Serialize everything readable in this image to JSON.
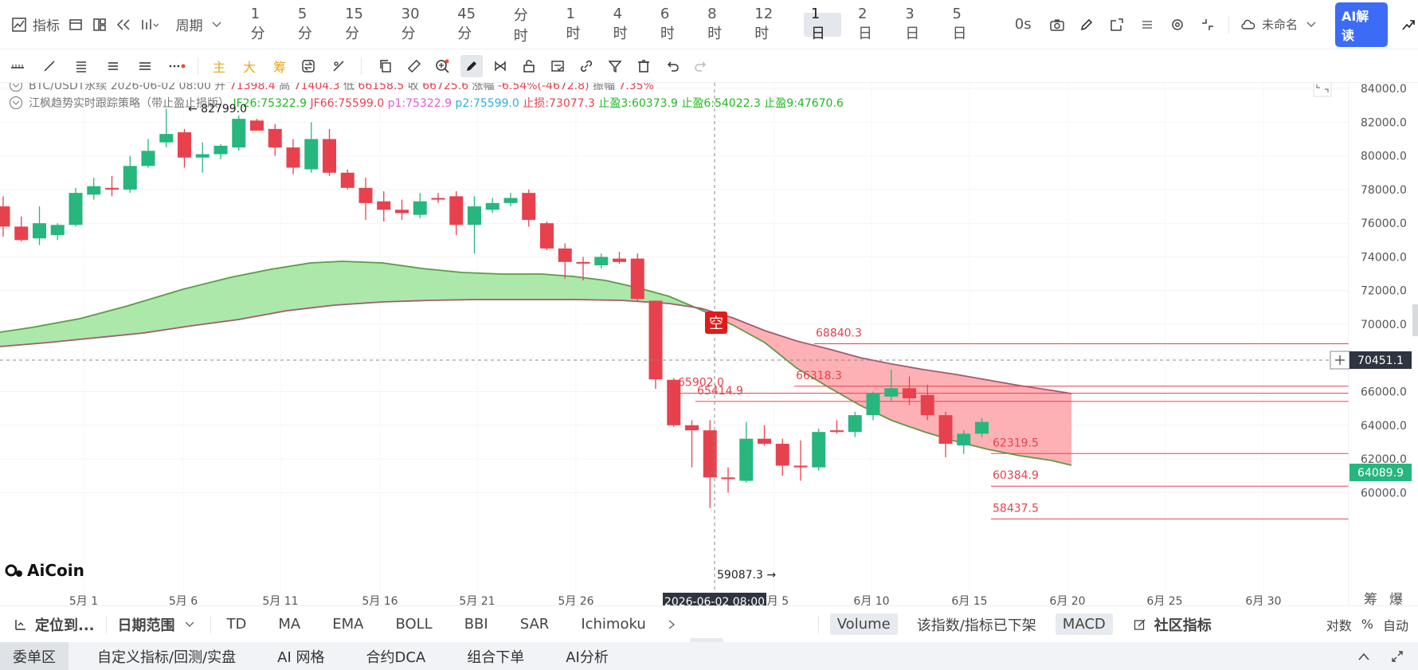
{
  "toolbar": {
    "indicator_label": "指标",
    "period_label": "周期",
    "periods": [
      "1分",
      "5分",
      "15分",
      "30分",
      "45分",
      "分时",
      "1时",
      "4时",
      "6时",
      "8时",
      "12时",
      "1日",
      "2日",
      "3日",
      "5日"
    ],
    "active_period": "1日",
    "timer": "0s",
    "layout_name": "未命名",
    "ai_button": "AI解读"
  },
  "toolbar2": {
    "main_label": "主",
    "big_label": "大",
    "chip_label": "筹"
  },
  "legend": {
    "symbol": "BTC/USDT永续",
    "datetime": "2026-06-02 08:00",
    "open_label": "开",
    "open": "71398.4",
    "high_label": "高",
    "high": "71404.3",
    "low_label": "低",
    "low": "66158.5",
    "close_label": "收",
    "close": "66725.6",
    "change_label": "涨幅",
    "change": "-6.54%(-4672.8)",
    "amp_label": "振幅",
    "amp": "7.35%",
    "strategy": "江枫趋势实时跟踪策略（带止盈止损版）",
    "jf26": "JF26:75322.9",
    "jf66": "JF66:75599.0",
    "p1": "p1:75322.9",
    "p2": "p2:75599.0",
    "stop_loss": "止损:73077.3",
    "tp3": "止盈3:60373.9",
    "tp6": "止盈6:54022.3",
    "tp9": "止盈9:47670.6"
  },
  "chart_data": {
    "type": "candlestick",
    "symbol": "BTC/USDT永续",
    "y_ticks": [
      "84000.0",
      "82000.0",
      "80000.0",
      "78000.0",
      "76000.0",
      "74000.0",
      "72000.0",
      "70000.0",
      "68000.0",
      "66000.0",
      "64000.0",
      "62000.0",
      "60000.0"
    ],
    "x_ticks": [
      "5月 1",
      "5月 6",
      "5月 11",
      "5月 16",
      "5月 21",
      "5月 26",
      "6月 5",
      "6月 10",
      "6月 15",
      "6月 20",
      "6月 25",
      "6月 30"
    ],
    "crosshair_price": "70451.1",
    "crosshair_date": "2026-06-02 08:00",
    "last_price": "64089.9",
    "max_label": "82799.0",
    "min_label": "59087.3",
    "signal": "空",
    "level_labels": [
      "68840.3",
      "66318.3",
      "65902.0",
      "65414.9",
      "62319.5",
      "60384.9",
      "58437.5"
    ],
    "candles": [
      {
        "o": 77000,
        "h": 77600,
        "l": 75200,
        "c": 75800
      },
      {
        "o": 75800,
        "h": 76400,
        "l": 74900,
        "c": 75000
      },
      {
        "o": 75100,
        "h": 77000,
        "l": 74700,
        "c": 76000
      },
      {
        "o": 75300,
        "h": 76000,
        "l": 75000,
        "c": 75900
      },
      {
        "o": 75900,
        "h": 78100,
        "l": 75800,
        "c": 77800
      },
      {
        "o": 77700,
        "h": 78700,
        "l": 77400,
        "c": 78200
      },
      {
        "o": 78100,
        "h": 78800,
        "l": 77600,
        "c": 78000
      },
      {
        "o": 78000,
        "h": 80000,
        "l": 77800,
        "c": 79400
      },
      {
        "o": 79400,
        "h": 81000,
        "l": 79300,
        "c": 80300
      },
      {
        "o": 80800,
        "h": 82800,
        "l": 80500,
        "c": 81300
      },
      {
        "o": 81400,
        "h": 81600,
        "l": 79300,
        "c": 79900
      },
      {
        "o": 79900,
        "h": 80800,
        "l": 79000,
        "c": 80100
      },
      {
        "o": 80100,
        "h": 80700,
        "l": 79800,
        "c": 80600
      },
      {
        "o": 80500,
        "h": 82400,
        "l": 80300,
        "c": 82200
      },
      {
        "o": 82100,
        "h": 82200,
        "l": 81600,
        "c": 81500
      },
      {
        "o": 81600,
        "h": 81900,
        "l": 80000,
        "c": 80500
      },
      {
        "o": 80500,
        "h": 81000,
        "l": 78900,
        "c": 79300
      },
      {
        "o": 79200,
        "h": 82000,
        "l": 79000,
        "c": 81000
      },
      {
        "o": 81000,
        "h": 81600,
        "l": 78800,
        "c": 79000
      },
      {
        "o": 79000,
        "h": 79200,
        "l": 78000,
        "c": 78100
      },
      {
        "o": 78100,
        "h": 78700,
        "l": 76200,
        "c": 77200
      },
      {
        "o": 77300,
        "h": 77900,
        "l": 76100,
        "c": 76800
      },
      {
        "o": 76800,
        "h": 77400,
        "l": 76200,
        "c": 76600
      },
      {
        "o": 76500,
        "h": 77800,
        "l": 76300,
        "c": 77300
      },
      {
        "o": 77500,
        "h": 77800,
        "l": 77200,
        "c": 77400
      },
      {
        "o": 77600,
        "h": 77900,
        "l": 75300,
        "c": 75900
      },
      {
        "o": 75900,
        "h": 77600,
        "l": 74200,
        "c": 77000
      },
      {
        "o": 76800,
        "h": 77500,
        "l": 76600,
        "c": 77200
      },
      {
        "o": 77200,
        "h": 77800,
        "l": 77000,
        "c": 77500
      },
      {
        "o": 77800,
        "h": 78000,
        "l": 75800,
        "c": 76200
      },
      {
        "o": 76000,
        "h": 76100,
        "l": 74400,
        "c": 74500
      },
      {
        "o": 74500,
        "h": 74800,
        "l": 72700,
        "c": 73700
      },
      {
        "o": 73700,
        "h": 74000,
        "l": 72600,
        "c": 73600
      },
      {
        "o": 73500,
        "h": 74200,
        "l": 73300,
        "c": 74000
      },
      {
        "o": 73900,
        "h": 74300,
        "l": 73600,
        "c": 73700
      },
      {
        "o": 73900,
        "h": 74200,
        "l": 71400,
        "c": 71500
      },
      {
        "o": 71398.4,
        "h": 71404.3,
        "l": 66158.5,
        "c": 66725.6
      },
      {
        "o": 66700,
        "h": 66800,
        "l": 63900,
        "c": 64000
      },
      {
        "o": 64000,
        "h": 64300,
        "l": 61500,
        "c": 63700
      },
      {
        "o": 63700,
        "h": 64300,
        "l": 59087.3,
        "c": 60900
      },
      {
        "o": 60900,
        "h": 61500,
        "l": 60000,
        "c": 60800
      },
      {
        "o": 60700,
        "h": 64200,
        "l": 60600,
        "c": 63200
      },
      {
        "o": 63200,
        "h": 64000,
        "l": 62800,
        "c": 62900
      },
      {
        "o": 62900,
        "h": 63200,
        "l": 61000,
        "c": 61600
      },
      {
        "o": 61600,
        "h": 63100,
        "l": 60700,
        "c": 61500
      },
      {
        "o": 61500,
        "h": 63800,
        "l": 61300,
        "c": 63600
      },
      {
        "o": 63700,
        "h": 64300,
        "l": 63500,
        "c": 63600
      },
      {
        "o": 63600,
        "h": 64800,
        "l": 63300,
        "c": 64600
      },
      {
        "o": 64600,
        "h": 66000,
        "l": 64300,
        "c": 65900
      },
      {
        "o": 65700,
        "h": 67300,
        "l": 65400,
        "c": 66200
      },
      {
        "o": 66200,
        "h": 66900,
        "l": 65200,
        "c": 65600
      },
      {
        "o": 65800,
        "h": 66400,
        "l": 64300,
        "c": 64600
      },
      {
        "o": 64600,
        "h": 64800,
        "l": 62100,
        "c": 62900
      },
      {
        "o": 62800,
        "h": 63700,
        "l": 62300,
        "c": 63500
      },
      {
        "o": 63500,
        "h": 64400,
        "l": 63300,
        "c": 64200
      }
    ]
  },
  "watermark": "AiCoin",
  "right_labels": {
    "chip": "筹",
    "explode": "爆"
  },
  "indicator_bar": {
    "locate": "定位到...",
    "date_range": "日期范围",
    "items": [
      "TD",
      "MA",
      "EMA",
      "BOLL",
      "BBI",
      "SAR",
      "Ichimoku"
    ],
    "volume": "Volume",
    "removed": "该指数/指标已下架",
    "macd": "MACD",
    "community": "社区指标",
    "log": "对数",
    "pct": "%",
    "auto": "自动"
  },
  "bottom_tabs": [
    "委单区",
    "自定义指标/回测/实盘",
    "AI 网格",
    "合约DCA",
    "组合下单",
    "AI分析"
  ],
  "colors": {
    "up": "#26b67e",
    "down": "#e8414e",
    "accent": "#3c6cf6"
  }
}
